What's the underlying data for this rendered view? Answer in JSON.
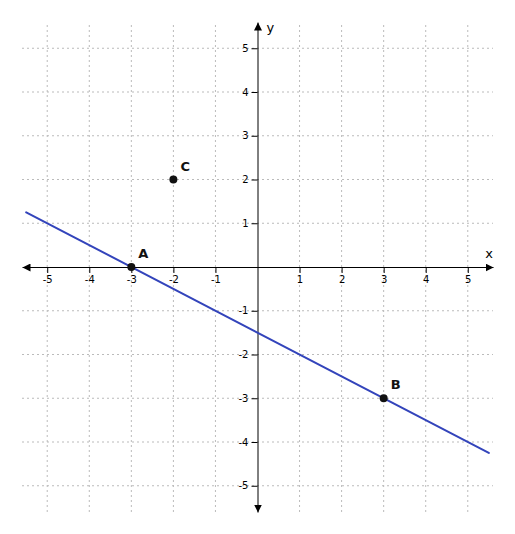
{
  "chart_data": {
    "type": "line",
    "x_label": "x",
    "y_label": "y",
    "xlim": [
      -5.6,
      5.6
    ],
    "ylim": [
      -5.6,
      5.6
    ],
    "xticks": [
      -5,
      -4,
      -3,
      -2,
      -1,
      1,
      2,
      3,
      4,
      5
    ],
    "yticks": [
      -5,
      -4,
      -3,
      -2,
      -1,
      1,
      2,
      3,
      4,
      5
    ],
    "grid": true,
    "series": [
      {
        "type": "line",
        "color": "#3344bb",
        "x": [
          -5.5,
          5.5
        ],
        "values": [
          1.25,
          -4.25
        ]
      },
      {
        "type": "scatter",
        "color": "#111111",
        "x": [
          -3,
          3,
          -2
        ],
        "values": [
          0,
          -3,
          2
        ],
        "labels": [
          "A",
          "B",
          "C"
        ]
      }
    ]
  }
}
